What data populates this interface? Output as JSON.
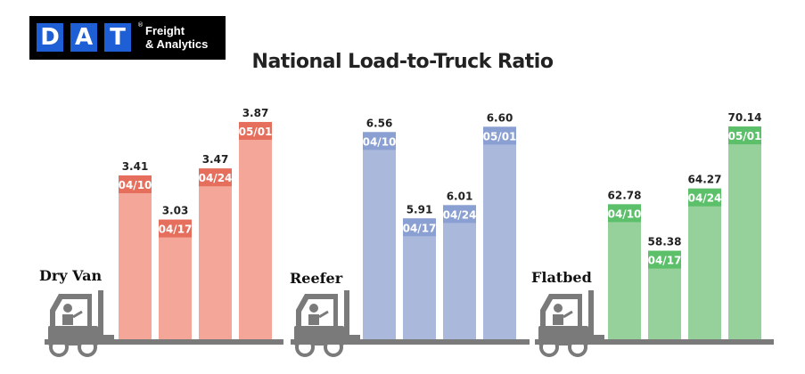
{
  "logo": {
    "letters": [
      "D",
      "A",
      "T"
    ],
    "tagline_line1": "Freight",
    "tagline_line2": "& Analytics",
    "registered": "®"
  },
  "title": "National Load-to-Truck Ratio",
  "chart_data": {
    "type": "bar",
    "title": "National Load-to-Truck Ratio",
    "groups": [
      {
        "name": "Dry Van",
        "color": "#f4a698",
        "label_color": "#e66e5c",
        "categories": [
          "04/10",
          "04/17",
          "04/24",
          "05/01"
        ],
        "values": [
          3.41,
          3.03,
          3.47,
          3.87
        ],
        "value_labels": [
          "3.41",
          "3.03",
          "3.47",
          "3.87"
        ],
        "ylim": [
          2.0,
          4.0
        ]
      },
      {
        "name": "Reefer",
        "color": "#aab8dc",
        "label_color": "#8a9fd2",
        "categories": [
          "04/10",
          "04/17",
          "04/24",
          "05/01"
        ],
        "values": [
          6.56,
          5.91,
          6.01,
          6.6
        ],
        "value_labels": [
          "6.56",
          "5.91",
          "6.01",
          "6.60"
        ],
        "ylim": [
          5.0,
          6.75
        ]
      },
      {
        "name": "Flatbed",
        "color": "#96d19b",
        "label_color": "#5cbf6a",
        "categories": [
          "04/10",
          "04/17",
          "04/24",
          "05/01"
        ],
        "values": [
          62.78,
          58.38,
          64.27,
          70.14
        ],
        "value_labels": [
          "62.78",
          "58.38",
          "64.27",
          "70.14"
        ],
        "ylim": [
          50.0,
          72.0
        ]
      }
    ]
  }
}
